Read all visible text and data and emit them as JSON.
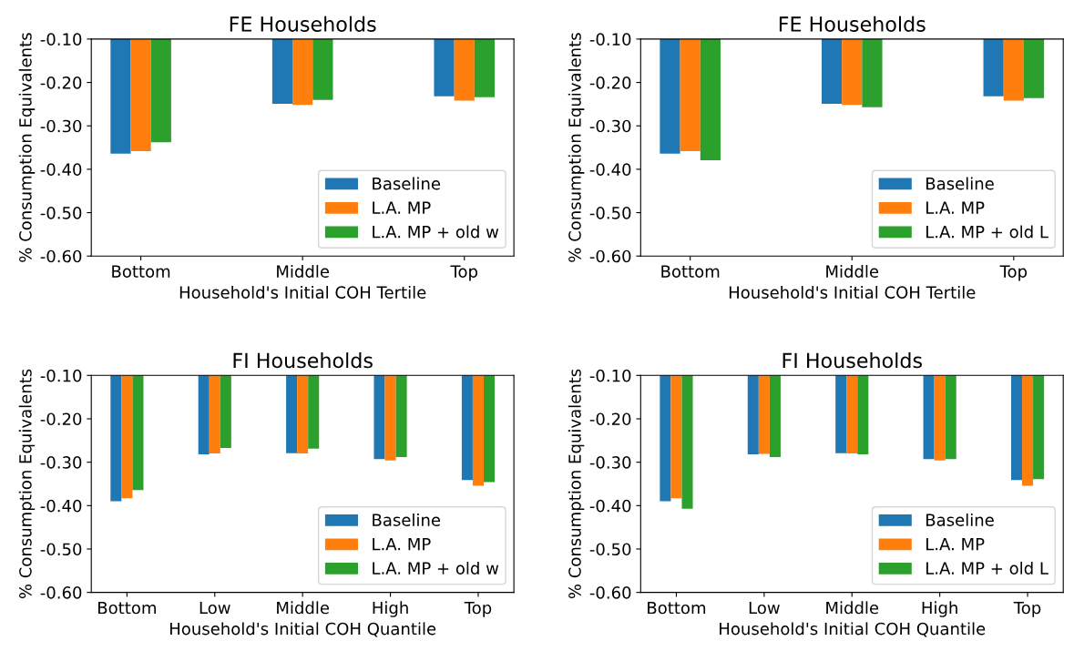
{
  "chart_data": [
    {
      "type": "bar",
      "title": "FE Households",
      "xlabel": "Household's Initial COH Tertile",
      "ylabel": "% Consumption Equivalents",
      "categories": [
        "Bottom",
        "Middle",
        "Top"
      ],
      "series": [
        {
          "name": "Baseline",
          "color": "#1f77b4",
          "values": [
            -0.364,
            -0.249,
            -0.232
          ]
        },
        {
          "name": "L.A. MP",
          "color": "#ff7f0e",
          "values": [
            -0.358,
            -0.252,
            -0.242
          ]
        },
        {
          "name": "L.A. MP + old w",
          "color": "#2ca02c",
          "values": [
            -0.338,
            -0.24,
            -0.234
          ]
        }
      ],
      "ylim": [
        -0.6,
        -0.1
      ],
      "yticks": [
        {
          "value": -0.6,
          "label": "-0.60"
        },
        {
          "value": -0.5,
          "label": "-0.50"
        },
        {
          "value": -0.4,
          "label": "-0.40"
        },
        {
          "value": -0.3,
          "label": "-0.30"
        },
        {
          "value": -0.2,
          "label": "-0.20"
        },
        {
          "value": -0.1,
          "label": "-0.10"
        }
      ],
      "legend": "bottom right",
      "grid": false
    },
    {
      "type": "bar",
      "title": "FE Households",
      "xlabel": "Household's Initial COH Tertile",
      "ylabel": "% Consumption Equivalents",
      "categories": [
        "Bottom",
        "Middle",
        "Top"
      ],
      "series": [
        {
          "name": "Baseline",
          "color": "#1f77b4",
          "values": [
            -0.364,
            -0.249,
            -0.232
          ]
        },
        {
          "name": "L.A. MP",
          "color": "#ff7f0e",
          "values": [
            -0.358,
            -0.252,
            -0.242
          ]
        },
        {
          "name": "L.A. MP + old L",
          "color": "#2ca02c",
          "values": [
            -0.379,
            -0.257,
            -0.236
          ]
        }
      ],
      "ylim": [
        -0.6,
        -0.1
      ],
      "yticks": [
        {
          "value": -0.6,
          "label": "-0.60"
        },
        {
          "value": -0.5,
          "label": "-0.50"
        },
        {
          "value": -0.4,
          "label": "-0.40"
        },
        {
          "value": -0.3,
          "label": "-0.30"
        },
        {
          "value": -0.2,
          "label": "-0.20"
        },
        {
          "value": -0.1,
          "label": "-0.10"
        }
      ],
      "legend": "bottom right",
      "grid": false
    },
    {
      "type": "bar",
      "title": "FI Households",
      "xlabel": "Household's Initial COH Quantile",
      "ylabel": "% Consumption Equivalents",
      "categories": [
        "Bottom",
        "Low",
        "Middle",
        "High",
        "Top"
      ],
      "series": [
        {
          "name": "Baseline",
          "color": "#1f77b4",
          "values": [
            -0.39,
            -0.282,
            -0.279,
            -0.293,
            -0.341
          ]
        },
        {
          "name": "L.A. MP",
          "color": "#ff7f0e",
          "values": [
            -0.383,
            -0.28,
            -0.28,
            -0.296,
            -0.354
          ]
        },
        {
          "name": "L.A. MP + old w",
          "color": "#2ca02c",
          "values": [
            -0.364,
            -0.267,
            -0.269,
            -0.288,
            -0.346
          ]
        }
      ],
      "ylim": [
        -0.6,
        -0.1
      ],
      "yticks": [
        {
          "value": -0.6,
          "label": "-0.60"
        },
        {
          "value": -0.5,
          "label": "-0.50"
        },
        {
          "value": -0.4,
          "label": "-0.40"
        },
        {
          "value": -0.3,
          "label": "-0.30"
        },
        {
          "value": -0.2,
          "label": "-0.20"
        },
        {
          "value": -0.1,
          "label": "-0.10"
        }
      ],
      "legend": "bottom right",
      "grid": false
    },
    {
      "type": "bar",
      "title": "FI Households",
      "xlabel": "Household's Initial COH Quantile",
      "ylabel": "% Consumption Equivalents",
      "categories": [
        "Bottom",
        "Low",
        "Middle",
        "High",
        "Top"
      ],
      "series": [
        {
          "name": "Baseline",
          "color": "#1f77b4",
          "values": [
            -0.39,
            -0.282,
            -0.279,
            -0.293,
            -0.341
          ]
        },
        {
          "name": "L.A. MP",
          "color": "#ff7f0e",
          "values": [
            -0.383,
            -0.281,
            -0.28,
            -0.296,
            -0.354
          ]
        },
        {
          "name": "L.A. MP + old L",
          "color": "#2ca02c",
          "values": [
            -0.407,
            -0.288,
            -0.282,
            -0.293,
            -0.339
          ]
        }
      ],
      "ylim": [
        -0.6,
        -0.1
      ],
      "yticks": [
        {
          "value": -0.6,
          "label": "-0.60"
        },
        {
          "value": -0.5,
          "label": "-0.50"
        },
        {
          "value": -0.4,
          "label": "-0.40"
        },
        {
          "value": -0.3,
          "label": "-0.30"
        },
        {
          "value": -0.2,
          "label": "-0.20"
        },
        {
          "value": -0.1,
          "label": "-0.10"
        }
      ],
      "legend": "bottom right",
      "grid": false
    }
  ]
}
